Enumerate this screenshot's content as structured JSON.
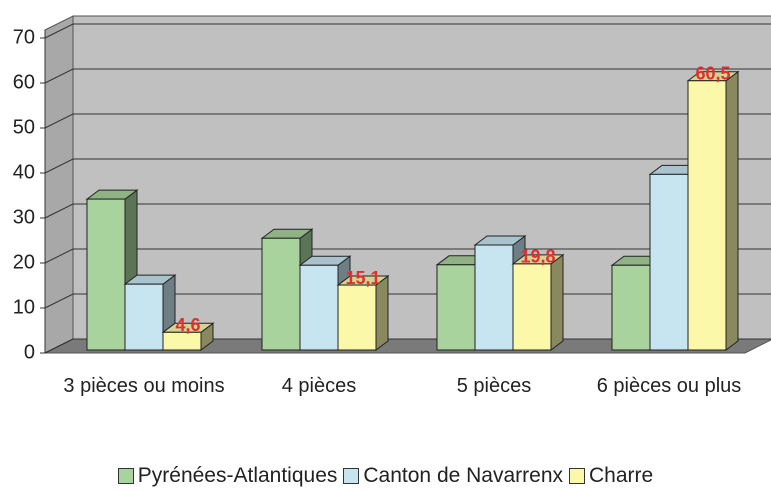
{
  "chart_data": {
    "type": "bar3d",
    "categories": [
      "3 pièces ou moins",
      "4 pièces",
      "5 pièces",
      "6 pièces ou plus"
    ],
    "series": [
      {
        "name": "Pyrénées-Atlantiques",
        "color": "#a8d39c",
        "values": [
          34.2,
          25.5,
          19.6,
          19.5
        ]
      },
      {
        "name": "Canton de Navarrenx",
        "color": "#c6e5f1",
        "values": [
          15.3,
          19.5,
          24,
          39.7
        ]
      },
      {
        "name": "Charre",
        "color": "#fbf8aa",
        "values": [
          4.6,
          15.1,
          19.8,
          60.5
        ],
        "value_labels": [
          "4,6",
          "15,1",
          "19,8",
          "60,5"
        ]
      }
    ],
    "ylim": [
      0,
      70
    ],
    "yticks": [
      0,
      10,
      20,
      30,
      40,
      50,
      60,
      70
    ],
    "grid": true,
    "legend": "bottom"
  }
}
